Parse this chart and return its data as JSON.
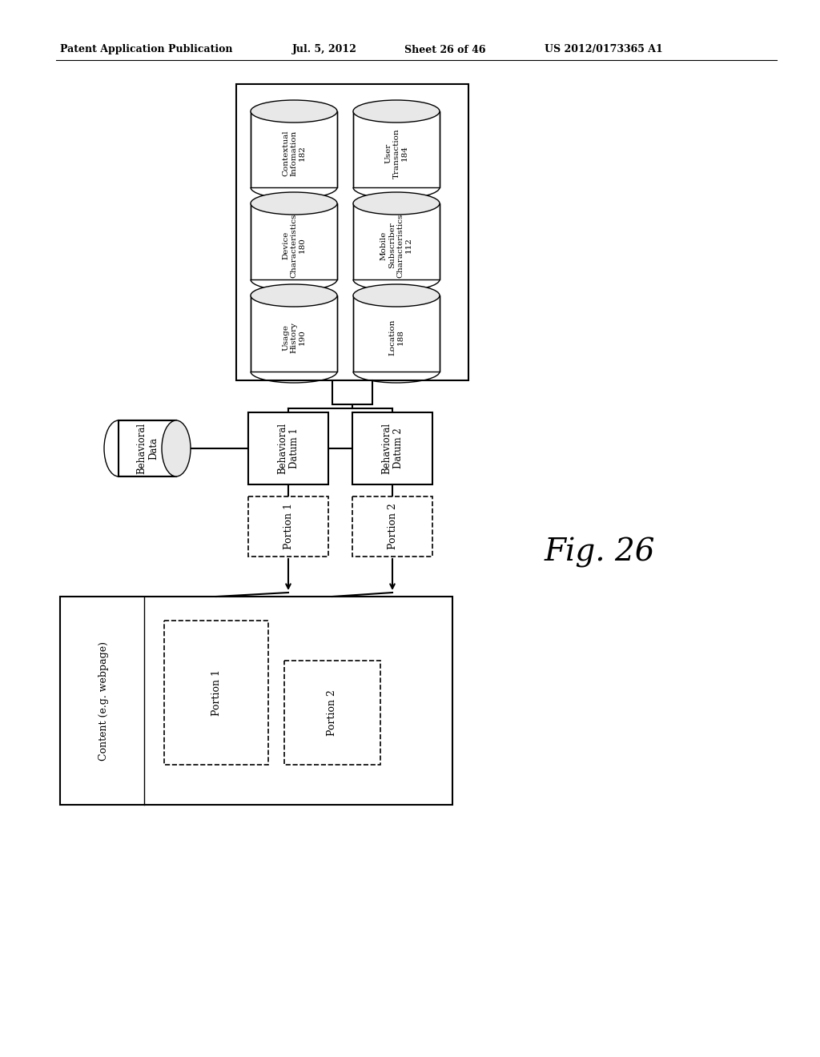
{
  "header_left": "Patent Application Publication",
  "header_mid": "Jul. 5, 2012",
  "header_mid2": "Sheet 26 of 46",
  "header_right": "US 2012/0173365 A1",
  "fig_label": "Fig. 26",
  "bg_color": "#ffffff",
  "databases_top": [
    {
      "label": "Contextual\nInfomation",
      "num": "182",
      "col": 0,
      "row": 0
    },
    {
      "label": "User\nTransaction",
      "num": "184",
      "col": 1,
      "row": 0
    },
    {
      "label": "Device\nCharacteristics",
      "num": "180",
      "col": 0,
      "row": 1
    },
    {
      "label": "Mobile\nSubscriber\nCharacteristics",
      "num": "112",
      "col": 1,
      "row": 1
    },
    {
      "label": "Usage\nHistory",
      "num": "190",
      "col": 0,
      "row": 2
    },
    {
      "label": "Location",
      "num": "188",
      "col": 1,
      "row": 2
    }
  ]
}
